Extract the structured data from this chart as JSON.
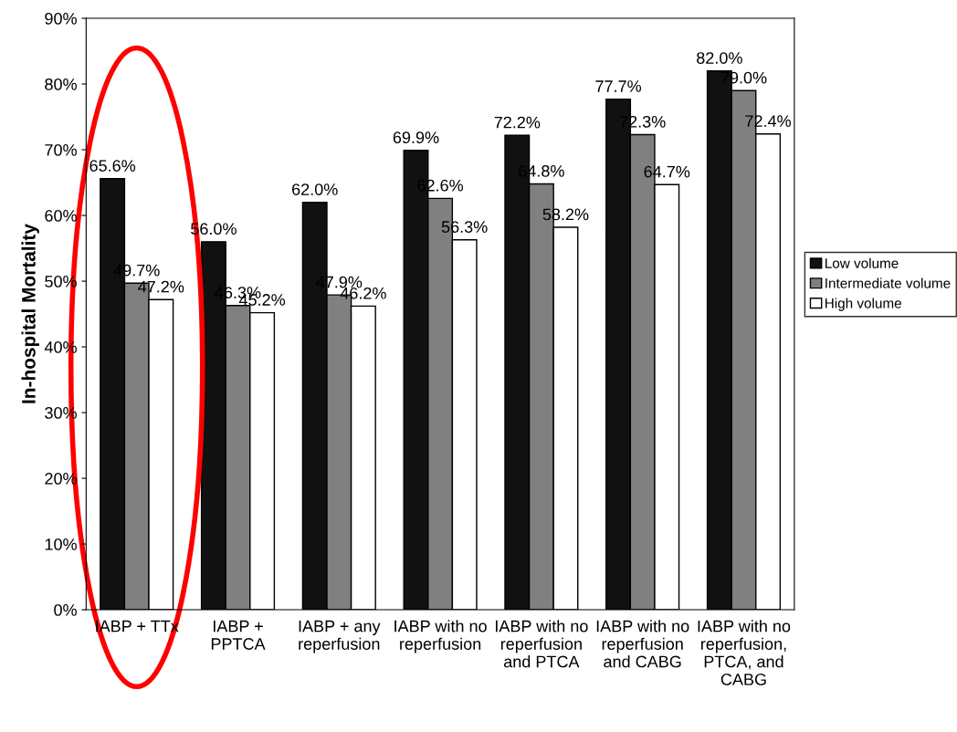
{
  "chart_data": {
    "type": "bar",
    "ylabel": "In-hospital Mortality",
    "categories": [
      "IABP + TTx",
      "IABP +\nPPTCA",
      "IABP + any\nreperfusion",
      "IABP with no\nreperfusion",
      "IABP with no\nreperfusion\nand PTCA",
      "IABP with no\nreperfusion\nand CABG",
      "IABP with no\nreperfusion,\nPTCA, and\nCABG"
    ],
    "series": [
      {
        "name": "Low volume",
        "color": "#111111",
        "values": [
          65.6,
          56.0,
          62.0,
          69.9,
          72.2,
          77.7,
          82.0
        ],
        "value_labels": [
          "65.6%",
          "56.0%",
          "62.0%",
          "69.9%",
          "72.2%",
          "77.7%",
          "82.0%"
        ]
      },
      {
        "name": "Intermediate volume",
        "color": "#808080",
        "values": [
          49.7,
          46.3,
          47.9,
          62.6,
          64.8,
          72.3,
          79.0
        ],
        "value_labels": [
          "49.7%",
          "46.3%",
          "47.9%",
          "62.6%",
          "64.8%",
          "72.3%",
          "79.0%"
        ]
      },
      {
        "name": "High volume",
        "color": "#ffffff",
        "values": [
          47.2,
          45.2,
          46.2,
          56.3,
          58.2,
          64.7,
          72.4
        ],
        "value_labels": [
          "47.2%",
          "45.2%",
          "46.2%",
          "56.3%",
          "58.2%",
          "64.7%",
          "72.4%"
        ]
      }
    ],
    "ylim": [
      0,
      90
    ],
    "yticks": [
      {
        "value": 0,
        "label": "0%"
      },
      {
        "value": 10,
        "label": "10%"
      },
      {
        "value": 20,
        "label": "20%"
      },
      {
        "value": 30,
        "label": "30%"
      },
      {
        "value": 40,
        "label": "40%"
      },
      {
        "value": 50,
        "label": "50%"
      },
      {
        "value": 60,
        "label": "60%"
      },
      {
        "value": 70,
        "label": "70%"
      },
      {
        "value": 80,
        "label": "80%"
      },
      {
        "value": 90,
        "label": "90%"
      }
    ],
    "grid": false,
    "legend": "right"
  }
}
